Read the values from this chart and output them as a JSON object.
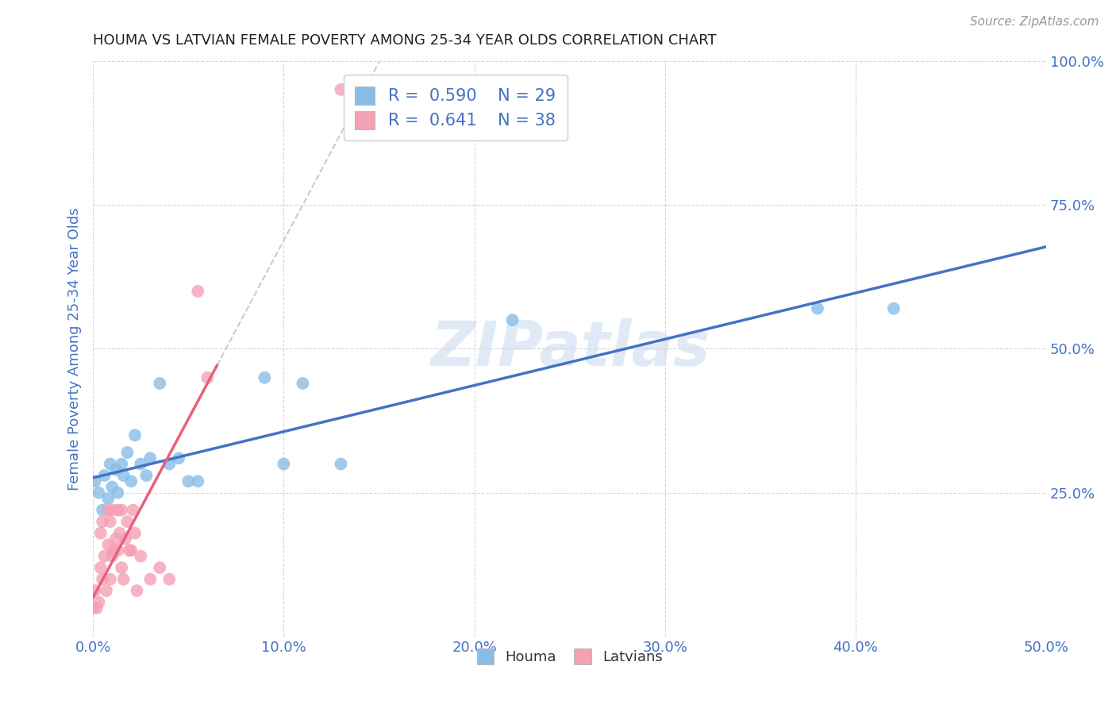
{
  "title": "HOUMA VS LATVIAN FEMALE POVERTY AMONG 25-34 YEAR OLDS CORRELATION CHART",
  "source": "Source: ZipAtlas.com",
  "ylabel": "Female Poverty Among 25-34 Year Olds",
  "xlim": [
    0.0,
    0.5
  ],
  "ylim": [
    0.0,
    1.0
  ],
  "xticks": [
    0.0,
    0.1,
    0.2,
    0.3,
    0.4,
    0.5
  ],
  "xticklabels": [
    "0.0%",
    "10.0%",
    "20.0%",
    "30.0%",
    "40.0%",
    "50.0%"
  ],
  "yticks": [
    0.0,
    0.25,
    0.5,
    0.75,
    1.0
  ],
  "yticklabels": [
    "",
    "25.0%",
    "50.0%",
    "75.0%",
    "100.0%"
  ],
  "houma_color": "#87bde8",
  "latvian_color": "#f4a0b5",
  "houma_line_color": "#4472c4",
  "latvian_line_color": "#e8607a",
  "dashed_color": "#cccccc",
  "background_color": "#ffffff",
  "grid_color": "#cccccc",
  "R_houma": 0.59,
  "N_houma": 29,
  "R_latvian": 0.641,
  "N_latvian": 38,
  "houma_x": [
    0.001,
    0.003,
    0.005,
    0.006,
    0.008,
    0.009,
    0.01,
    0.012,
    0.013,
    0.015,
    0.016,
    0.018,
    0.02,
    0.022,
    0.025,
    0.028,
    0.03,
    0.035,
    0.04,
    0.045,
    0.05,
    0.055,
    0.09,
    0.1,
    0.11,
    0.13,
    0.38,
    0.42,
    0.22
  ],
  "houma_y": [
    0.27,
    0.25,
    0.22,
    0.28,
    0.24,
    0.3,
    0.26,
    0.29,
    0.25,
    0.3,
    0.28,
    0.32,
    0.27,
    0.35,
    0.3,
    0.28,
    0.31,
    0.44,
    0.3,
    0.31,
    0.27,
    0.27,
    0.45,
    0.3,
    0.44,
    0.3,
    0.57,
    0.57,
    0.55
  ],
  "latvian_x": [
    0.0,
    0.001,
    0.002,
    0.003,
    0.004,
    0.004,
    0.005,
    0.005,
    0.006,
    0.007,
    0.008,
    0.008,
    0.009,
    0.009,
    0.01,
    0.01,
    0.011,
    0.012,
    0.013,
    0.013,
    0.014,
    0.015,
    0.015,
    0.016,
    0.017,
    0.018,
    0.019,
    0.02,
    0.021,
    0.022,
    0.023,
    0.025,
    0.03,
    0.035,
    0.04,
    0.055,
    0.06,
    0.13
  ],
  "latvian_y": [
    0.05,
    0.08,
    0.05,
    0.06,
    0.12,
    0.18,
    0.1,
    0.2,
    0.14,
    0.08,
    0.16,
    0.22,
    0.1,
    0.2,
    0.14,
    0.22,
    0.15,
    0.17,
    0.15,
    0.22,
    0.18,
    0.12,
    0.22,
    0.1,
    0.17,
    0.2,
    0.15,
    0.15,
    0.22,
    0.18,
    0.08,
    0.14,
    0.1,
    0.12,
    0.1,
    0.6,
    0.45,
    0.95
  ],
  "latvian_trendline_x_end": 0.065,
  "latvian_trendline_dashed_end": 0.2,
  "watermark": "ZIPatlas",
  "legend_text_color": "#4472c4",
  "title_color": "#222222",
  "axis_label_color": "#4472c4",
  "tick_label_color": "#4472c4",
  "watermark_color": "#ccddf0"
}
